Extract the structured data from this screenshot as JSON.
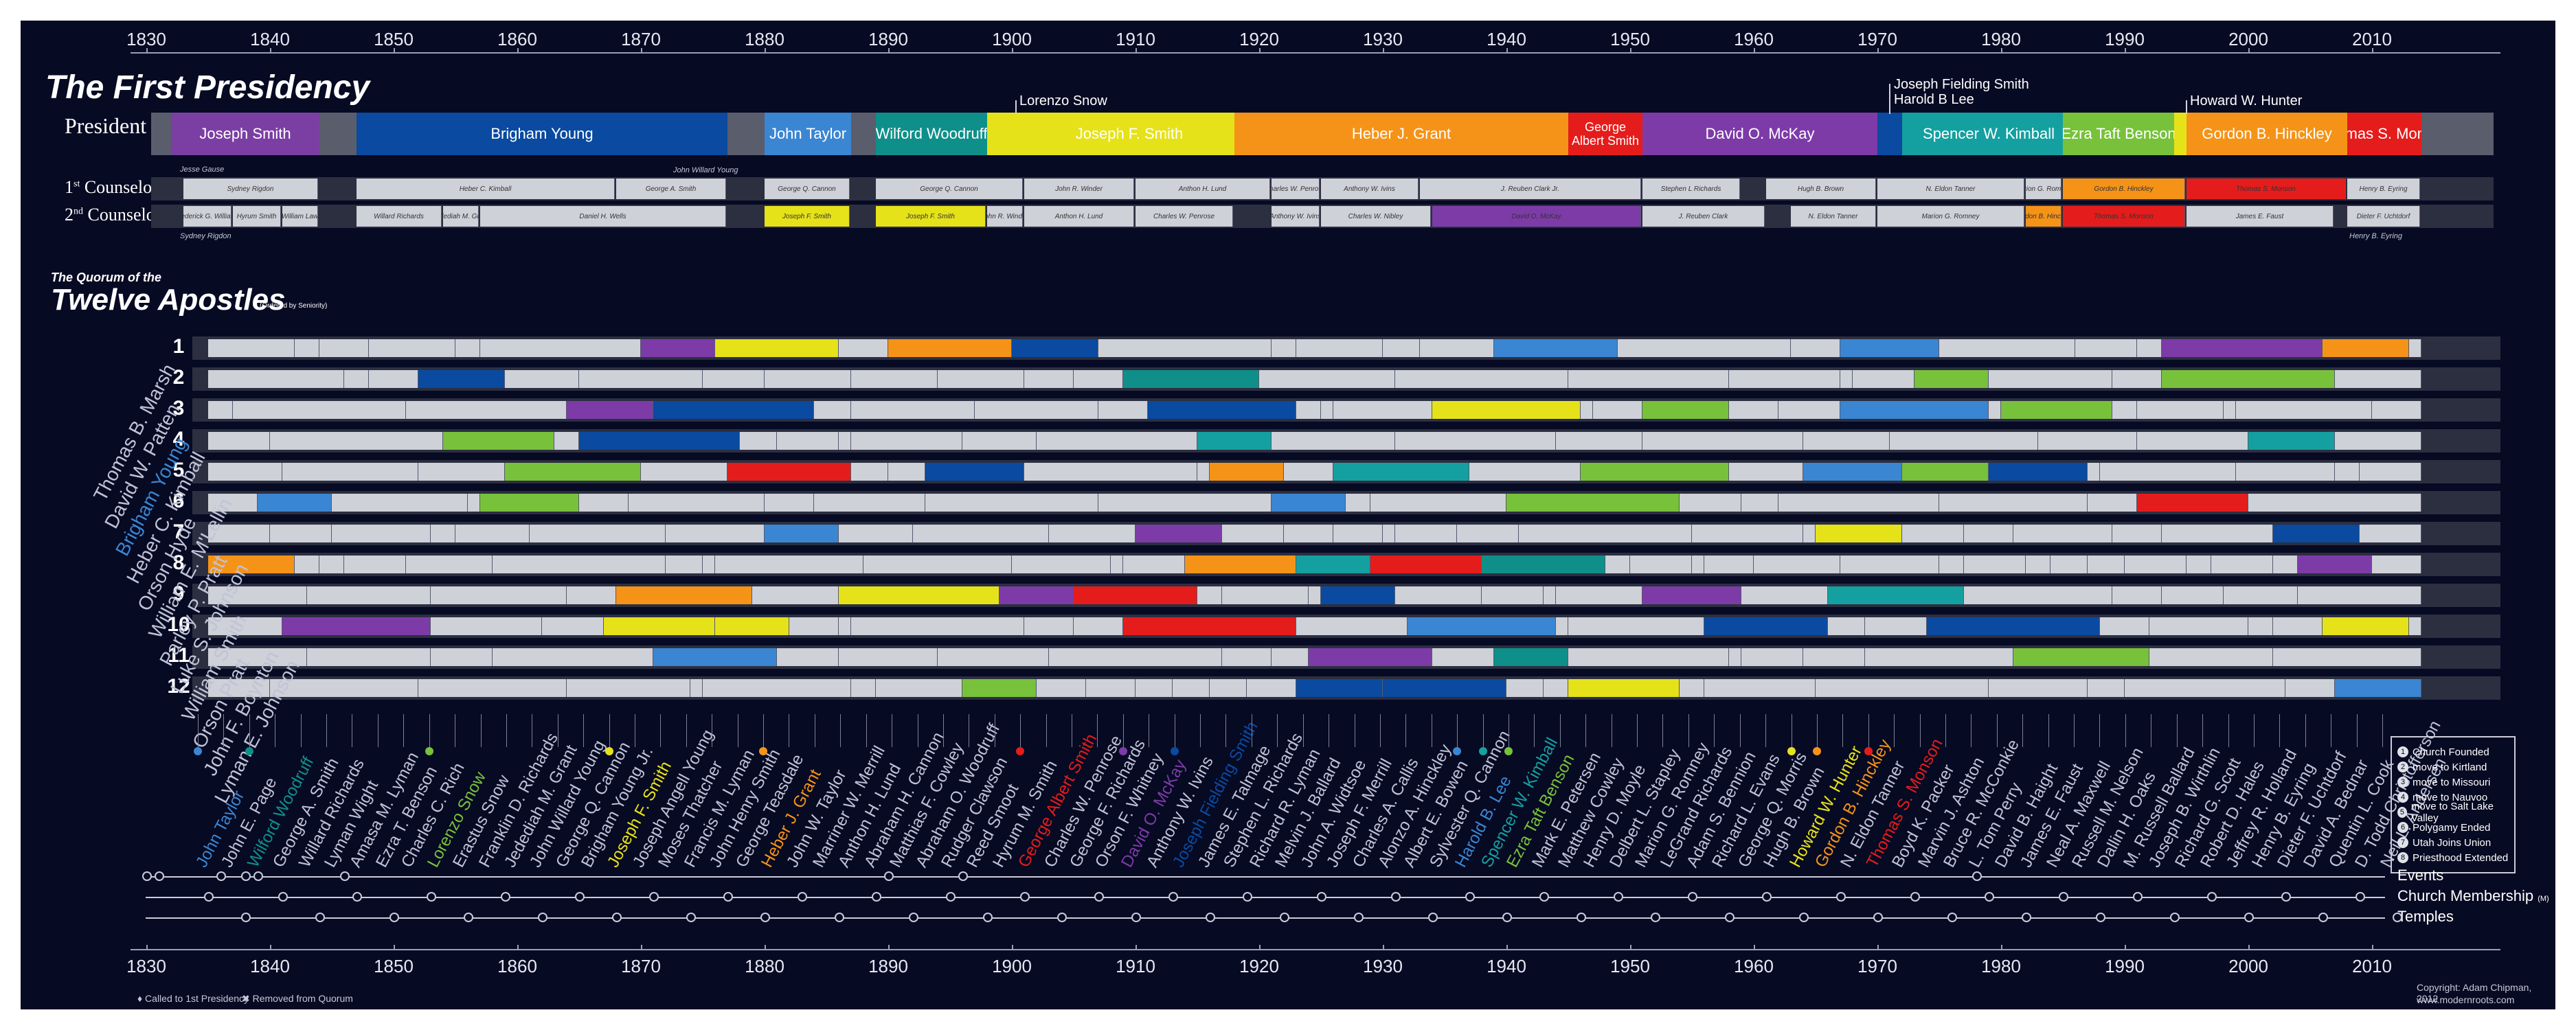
{
  "axis_years": [
    "1830",
    "1840",
    "1850",
    "1860",
    "1870",
    "1880",
    "1890",
    "1900",
    "1910",
    "1920",
    "1930",
    "1940",
    "1950",
    "1960",
    "1970",
    "1980",
    "1990",
    "2000",
    "2010"
  ],
  "title": "The First Presidency",
  "rows": {
    "president": "President",
    "first_counselor_num": "1",
    "first_counselor_sup": "st",
    "first_counselor_word": "Counselor",
    "second_counselor_num": "2",
    "second_counselor_sup": "nd",
    "second_counselor_word": "Counselor"
  },
  "presidents": [
    {
      "name": "Joseph Smith",
      "color": "#7b3fa3"
    },
    {
      "name": "Brigham Young",
      "color": "#0a4aa0"
    },
    {
      "name": "John Taylor",
      "color": "#3a86d2"
    },
    {
      "name": "Wilford Woodruff",
      "color": "#0f8f8a"
    },
    {
      "name": "Joseph F. Smith",
      "color": "#e6e21a"
    },
    {
      "name": "Heber J. Grant",
      "color": "#f59318"
    },
    {
      "name": "George Albert Smith",
      "color": "#e51c1c"
    },
    {
      "name": "David O. McKay",
      "color": "#7d3ba8"
    },
    {
      "name": "Spencer W. Kimball",
      "color": "#14a0a0"
    },
    {
      "name": "Ezra Taft Benson",
      "color": "#78c13a"
    },
    {
      "name": "Gordon B. Hinckley",
      "color": "#f59318"
    },
    {
      "name": "Thomas S. Monson",
      "color": "#e51c1c"
    }
  ],
  "president_callouts": {
    "lorenzo_snow": "Lorenzo Snow",
    "joseph_fielding_smith": "Joseph Fielding Smith",
    "harold_b_lee": "Harold B Lee",
    "howard_w_hunter": "Howard W. Hunter"
  },
  "first_counselors": [
    "Sydney Rigdon",
    "Heber C. Kimball",
    "George A. Smith",
    "George Q. Cannon",
    "George Q. Cannon",
    "John R. Winder",
    "Anthon H. Lund",
    "Charles W. Penrose",
    "Anthony W. Ivins",
    "J. Reuben Clark Jr.",
    "Stephen L Richards",
    "Hugh B. Brown",
    "N. Eldon Tanner",
    "Marion G. Romney",
    "Gordon B. Hinckley",
    "Thomas S. Monson",
    "Henry B. Eyring"
  ],
  "second_counselors": [
    "Frederick G. Williams",
    "Hyrum Smith",
    "William Law",
    "Willard Richards",
    "Jedediah M. Grant",
    "Daniel H. Wells",
    "Joseph F. Smith",
    "Joseph F. Smith",
    "John R. Winder",
    "Anthon H. Lund",
    "Charles W. Penrose",
    "Anthony W. Ivins",
    "Charles W. Nibley",
    "David O. McKay",
    "J. Reuben Clark",
    "N. Eldon Tanner",
    "Marion G. Romney",
    "Gordon B. Hinckley",
    "Thomas S. Monson",
    "James E. Faust",
    "Dieter F. Uchtdorf"
  ],
  "counselor_notes": {
    "jesse_gause": "Jesse Gause",
    "sydney_rigdon_2": "Sydney Rigdon",
    "john_willard_young": "John Willard Young",
    "henry_b_eyring": "Henry B. Eyring"
  },
  "quorum": {
    "pre": "The Quorum of the",
    "title": "Twelve Apostles",
    "subtitle": "(Ordered by Seniority)"
  },
  "seniority_rows": [
    "1",
    "2",
    "3",
    "4",
    "5",
    "6",
    "7",
    "8",
    "9",
    "10",
    "11",
    "12"
  ],
  "original_apostles": [
    "Thomas B. Marsh",
    "David W. Patten",
    "Brigham Young",
    "Heber C. Kimball",
    "Orson Hyde",
    "William E. M'Lellin",
    "Parley P. Pratt",
    "Luke S. Johnson",
    "William Smith",
    "Orson Pratt",
    "John F. Boynton",
    "Lyman E. Johnson"
  ],
  "apostles": [
    "John Taylor",
    "John E. Page",
    "Wilford Woodruff",
    "George A. Smith",
    "Willard Richards",
    "Lyman Wight",
    "Amasa M. Lyman",
    "Ezra T. Benson",
    "Charles C. Rich",
    "Lorenzo Snow",
    "Erastus Snow",
    "Franklin D. Richards",
    "Jedediah M. Grant",
    "John Willard Young",
    "George Q. Cannon",
    "Brigham Young Jr.",
    "Joseph F. Smith",
    "Joseph Angell Young",
    "Moses Thatcher",
    "Francis M. Lyman",
    "John Henry Smith",
    "George Teasdale",
    "Heber J. Grant",
    "John W. Taylor",
    "Marriner W. Merrill",
    "Anthon H. Lund",
    "Abraham H. Cannon",
    "Matthias F. Cowley",
    "Abraham O. Woodruff",
    "Rudger Clawson",
    "Reed Smoot",
    "Hyrum M. Smith",
    "George Albert Smith",
    "Charles W. Penrose",
    "George F. Richards",
    "Orson F. Whitney",
    "David O. McKay",
    "Anthony W. Ivins",
    "Joseph Fielding Smith",
    "James E. Talmage",
    "Stephen L. Richards",
    "Richard R. Lyman",
    "Melvin J. Ballard",
    "John A. Widtsoe",
    "Joseph F. Merrill",
    "Charles A. Callis",
    "Alonzo A. Hinckley",
    "Albert E. Bowen",
    "Sylvester Q. Cannon",
    "Harold B. Lee",
    "Spencer W. Kimball",
    "Ezra Taft Benson",
    "Mark E. Petersen",
    "Matthew Cowley",
    "Henry D. Moyle",
    "Delbert L. Stapley",
    "Marion G. Romney",
    "LeGrand Richards",
    "Adam S. Bennion",
    "Richard L. Evans",
    "George Q. Morris",
    "Hugh B. Brown",
    "Howard W. Hunter",
    "Gordon B. Hinckley",
    "N. Eldon Tanner",
    "Thomas S. Monson",
    "Boyd K. Packer",
    "Marvin J. Ashton",
    "Bruce R. McConkie",
    "L. Tom Perry",
    "David B. Haight",
    "James E. Faust",
    "Neal A. Maxwell",
    "Russell M. Nelson",
    "Dallin H. Oaks",
    "M. Russell Ballard",
    "Joseph B. Wirthlin",
    "Richard G. Scott",
    "Robert D. Hales",
    "Jeffrey R. Holland",
    "Henry B. Eyring",
    "Dieter F. Uchtdorf",
    "David A. Bednar",
    "Quentin L. Cook",
    "D. Todd Christofferson",
    "Neil L. Andersen"
  ],
  "legend": [
    {
      "n": "1",
      "label": "Church Founded"
    },
    {
      "n": "2",
      "label": "move to Kirtland"
    },
    {
      "n": "3",
      "label": "move to Missouri"
    },
    {
      "n": "4",
      "label": "move to Nauvoo"
    },
    {
      "n": "5",
      "label": "move to Salt Lake Valley"
    },
    {
      "n": "6",
      "label": "Polygamy Ended"
    },
    {
      "n": "7",
      "label": "Utah Joins Union"
    },
    {
      "n": "8",
      "label": "Priesthood Extended"
    }
  ],
  "timelines": {
    "events": "Events",
    "membership": "Church Membership",
    "membership_unit": "(M)",
    "temples": "Temples"
  },
  "footnotes": {
    "called": "Called to 1st Presidency",
    "removed": "Removed from Quorum"
  },
  "credit": {
    "copyright": "Copyright: Adam Chipman, 2012",
    "site": "www.modernroots.com"
  }
}
